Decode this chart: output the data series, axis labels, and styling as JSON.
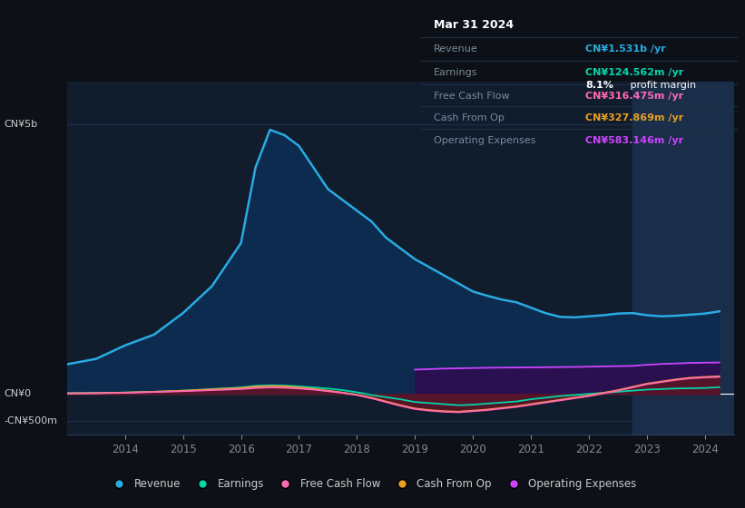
{
  "bg_color": "#0d1117",
  "plot_bg_color": "#111c2d",
  "grid_color": "#1e3050",
  "years": [
    2013.0,
    2013.5,
    2014.0,
    2014.5,
    2015.0,
    2015.5,
    2016.0,
    2016.25,
    2016.5,
    2016.75,
    2017.0,
    2017.25,
    2017.5,
    2017.75,
    2018.0,
    2018.25,
    2018.5,
    2018.75,
    2019.0,
    2019.25,
    2019.5,
    2019.75,
    2020.0,
    2020.25,
    2020.5,
    2020.75,
    2021.0,
    2021.25,
    2021.5,
    2021.75,
    2022.0,
    2022.25,
    2022.5,
    2022.75,
    2023.0,
    2023.25,
    2023.5,
    2023.75,
    2024.0,
    2024.25
  ],
  "revenue": [
    550,
    650,
    900,
    1100,
    1500,
    2000,
    2800,
    4200,
    4900,
    4800,
    4600,
    4200,
    3800,
    3600,
    3400,
    3200,
    2900,
    2700,
    2500,
    2350,
    2200,
    2050,
    1900,
    1820,
    1750,
    1700,
    1600,
    1500,
    1430,
    1420,
    1440,
    1460,
    1490,
    1500,
    1460,
    1440,
    1450,
    1470,
    1490,
    1531
  ],
  "earnings": [
    15,
    18,
    25,
    40,
    60,
    90,
    120,
    150,
    160,
    155,
    140,
    120,
    100,
    70,
    30,
    -20,
    -60,
    -100,
    -150,
    -170,
    -190,
    -210,
    -200,
    -180,
    -160,
    -140,
    -100,
    -70,
    -40,
    -20,
    0,
    20,
    40,
    60,
    80,
    90,
    100,
    105,
    110,
    124.562
  ],
  "free_cash_flow": [
    8,
    12,
    20,
    35,
    50,
    70,
    90,
    110,
    120,
    115,
    100,
    80,
    50,
    20,
    -20,
    -80,
    -150,
    -220,
    -280,
    -310,
    -330,
    -340,
    -320,
    -300,
    -270,
    -240,
    -200,
    -160,
    -120,
    -80,
    -40,
    10,
    60,
    120,
    180,
    220,
    260,
    290,
    305,
    316.475
  ],
  "cash_from_op": [
    10,
    15,
    25,
    40,
    60,
    85,
    110,
    135,
    145,
    140,
    120,
    95,
    60,
    25,
    -15,
    -70,
    -140,
    -210,
    -270,
    -300,
    -320,
    -330,
    -310,
    -290,
    -260,
    -230,
    -190,
    -150,
    -110,
    -70,
    -30,
    20,
    70,
    130,
    190,
    230,
    270,
    300,
    315,
    327.869
  ],
  "operating_expenses": [
    0,
    0,
    0,
    0,
    0,
    0,
    0,
    0,
    0,
    0,
    0,
    0,
    0,
    0,
    0,
    0,
    0,
    0,
    450,
    460,
    470,
    475,
    480,
    485,
    488,
    490,
    492,
    495,
    498,
    500,
    505,
    510,
    515,
    520,
    540,
    555,
    565,
    575,
    580,
    583.146
  ],
  "revenue_color": "#29abe2",
  "revenue_fill": "#0d2b4e",
  "earnings_color": "#00d4aa",
  "earnings_fill": "#0a3030",
  "free_cash_flow_color": "#ff69b4",
  "free_cash_flow_fill": "#5a1030",
  "cash_from_op_color": "#e8a020",
  "cash_from_op_fill": "#4a3000",
  "op_expenses_color": "#cc44ff",
  "op_expenses_fill": "#2a1050",
  "zero_line_color": "#ffffff",
  "ytick_labels": [
    "CN¥5b",
    "CN¥0",
    "-CN¥500m"
  ],
  "ytick_values": [
    5000,
    0,
    -500
  ],
  "xtick_labels": [
    "2014",
    "2015",
    "2016",
    "2017",
    "2018",
    "2019",
    "2020",
    "2021",
    "2022",
    "2023",
    "2024"
  ],
  "xtick_values": [
    2014,
    2015,
    2016,
    2017,
    2018,
    2019,
    2020,
    2021,
    2022,
    2023,
    2024
  ],
  "ylim": [
    -750,
    5800
  ],
  "xlim": [
    2013.0,
    2024.5
  ],
  "highlight_x_start": 2022.75,
  "highlight_x_end": 2024.5,
  "highlight_color": "#1a2e4a",
  "op_start_x": 2019.0,
  "legend_items": [
    {
      "label": "Revenue",
      "color": "#29abe2"
    },
    {
      "label": "Earnings",
      "color": "#00d4aa"
    },
    {
      "label": "Free Cash Flow",
      "color": "#ff69b4"
    },
    {
      "label": "Cash From Op",
      "color": "#e8a020"
    },
    {
      "label": "Operating Expenses",
      "color": "#cc44ff"
    }
  ],
  "tooltip": {
    "date": "Mar 31 2024",
    "revenue_label": "Revenue",
    "revenue_value": "CN¥1.531b /yr",
    "revenue_color": "#29abe2",
    "earnings_label": "Earnings",
    "earnings_value": "CN¥124.562m /yr",
    "earnings_color": "#00d4aa",
    "fcf_label": "Free Cash Flow",
    "fcf_value": "CN¥316.475m /yr",
    "fcf_color": "#ff69b4",
    "cashop_label": "Cash From Op",
    "cashop_value": "CN¥327.869m /yr",
    "cashop_color": "#e8a020",
    "opex_label": "Operating Expenses",
    "opex_value": "CN¥583.146m /yr",
    "opex_color": "#cc44ff"
  }
}
